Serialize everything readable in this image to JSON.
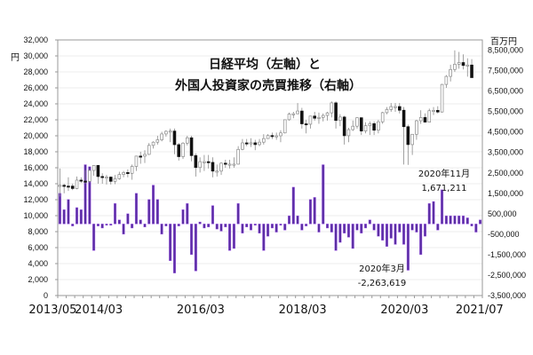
{
  "chart_data": {
    "type": "candlestick+bar",
    "title_lines": [
      "日経平均（左軸）と",
      "外国人投資家の売買推移（右軸）"
    ],
    "left_axis": {
      "unit": "円",
      "ylim": [
        0,
        32000
      ],
      "ticks": [
        "0",
        "2,000",
        "4,000",
        "6,000",
        "8,000",
        "10,000",
        "12,000",
        "14,000",
        "16,000",
        "18,000",
        "20,000",
        "22,000",
        "24,000",
        "26,000",
        "28,000",
        "30,000",
        "32,000"
      ]
    },
    "right_axis": {
      "unit": "百万円",
      "ylim": [
        -3500000,
        9000000
      ],
      "ticks": [
        "-3,500,000",
        "-2,500,000",
        "-1,500,000",
        "-500,000",
        "500,000",
        "1,500,000",
        "2,500,000",
        "3,500,000",
        "4,500,000",
        "5,500,000",
        "6,500,000",
        "7,500,000",
        "8,500,000"
      ]
    },
    "x_tick_labels": [
      {
        "label": "2013/05",
        "index": 0
      },
      {
        "label": "2014/03",
        "index": 10
      },
      {
        "label": "2016/03",
        "index": 34
      },
      {
        "label": "2018/03",
        "index": 58
      },
      {
        "label": "2020/03",
        "index": 82
      },
      {
        "label": "2021/07",
        "index": 98
      }
    ],
    "grid": true,
    "annotations": [
      {
        "label": "2020年11月",
        "value": "1,671,211",
        "index": 90
      },
      {
        "label": "2020年3月",
        "value": "-2,263,619",
        "index": 82
      }
    ],
    "series": [
      {
        "name": "日経平均",
        "kind": "candlestick",
        "axis": "left",
        "ohlc": [
          [
            13700,
            15900,
            12400,
            13800
          ],
          [
            13800,
            14000,
            12800,
            13700
          ],
          [
            13700,
            14800,
            13100,
            13670
          ],
          [
            13700,
            14000,
            13200,
            13400
          ],
          [
            13400,
            14900,
            13300,
            14450
          ],
          [
            14450,
            14800,
            14100,
            14330
          ],
          [
            14330,
            15700,
            14000,
            14300
          ],
          [
            14300,
            15800,
            14100,
            15660
          ],
          [
            15660,
            16320,
            15000,
            16290
          ],
          [
            16290,
            16300,
            14000,
            14900
          ],
          [
            14900,
            15300,
            14000,
            14830
          ],
          [
            14830,
            15100,
            13900,
            14830
          ],
          [
            14830,
            14900,
            13900,
            14300
          ],
          [
            14300,
            15100,
            13950,
            14630
          ],
          [
            14630,
            15500,
            14500,
            15160
          ],
          [
            15160,
            15600,
            14800,
            15400
          ],
          [
            15400,
            15800,
            14800,
            15300
          ],
          [
            15300,
            16400,
            14500,
            16170
          ],
          [
            16170,
            17500,
            15600,
            17460
          ],
          [
            17460,
            18000,
            16500,
            17450
          ],
          [
            17450,
            18200,
            16600,
            17670
          ],
          [
            17670,
            19100,
            17600,
            18800
          ],
          [
            18800,
            19300,
            18400,
            19200
          ],
          [
            19200,
            20000,
            18900,
            19500
          ],
          [
            19500,
            20500,
            19300,
            20230
          ],
          [
            20230,
            20700,
            19900,
            20560
          ],
          [
            20560,
            20900,
            19200,
            20590
          ],
          [
            20590,
            20900,
            17700,
            18890
          ],
          [
            18890,
            19100,
            16900,
            17390
          ],
          [
            17390,
            19200,
            17100,
            19080
          ],
          [
            19080,
            20000,
            18800,
            19750
          ],
          [
            19750,
            20000,
            16800,
            17520
          ],
          [
            17520,
            17800,
            14900,
            16030
          ],
          [
            16030,
            17300,
            15400,
            16760
          ],
          [
            16760,
            17600,
            15600,
            16760
          ],
          [
            16760,
            17600,
            15900,
            16670
          ],
          [
            16670,
            17300,
            14800,
            15580
          ],
          [
            15580,
            16400,
            14900,
            15580
          ],
          [
            15580,
            16700,
            15100,
            16570
          ],
          [
            16570,
            17000,
            16000,
            16450
          ],
          [
            16450,
            17000,
            15900,
            16450
          ],
          [
            16450,
            17300,
            16000,
            16450
          ],
          [
            16450,
            18700,
            16400,
            18300
          ],
          [
            18300,
            19600,
            18200,
            19110
          ],
          [
            19110,
            19600,
            18700,
            19040
          ],
          [
            19040,
            19700,
            18600,
            19120
          ],
          [
            19120,
            19500,
            18200,
            18900
          ],
          [
            18900,
            19600,
            18700,
            19200
          ],
          [
            19200,
            20200,
            18900,
            19650
          ],
          [
            19650,
            20200,
            19800,
            20030
          ],
          [
            20030,
            20400,
            19600,
            19920
          ],
          [
            19920,
            20400,
            19500,
            20000
          ],
          [
            20000,
            20700,
            19200,
            20360
          ],
          [
            20360,
            22000,
            20300,
            22010
          ],
          [
            22010,
            22900,
            21900,
            22720
          ],
          [
            22720,
            23000,
            22200,
            22760
          ],
          [
            22760,
            24100,
            22700,
            23100
          ],
          [
            23100,
            23500,
            20900,
            21500
          ],
          [
            21500,
            22000,
            20300,
            21450
          ],
          [
            21450,
            22400,
            20900,
            22470
          ],
          [
            22470,
            23000,
            21900,
            22200
          ],
          [
            22200,
            22900,
            21500,
            22300
          ],
          [
            22300,
            22800,
            21800,
            22550
          ],
          [
            22550,
            23000,
            21900,
            22870
          ],
          [
            22870,
            24300,
            22300,
            24120
          ],
          [
            24120,
            24300,
            20900,
            21920
          ],
          [
            21920,
            22700,
            21200,
            22350
          ],
          [
            22350,
            22500,
            18900,
            20010
          ],
          [
            20010,
            21000,
            19200,
            20770
          ],
          [
            20770,
            21900,
            20600,
            21200
          ],
          [
            21200,
            22300,
            20900,
            22260
          ],
          [
            22260,
            22300,
            20100,
            20600
          ],
          [
            20600,
            21700,
            20300,
            21270
          ],
          [
            21270,
            21800,
            20100,
            21520
          ],
          [
            21520,
            21800,
            20100,
            20700
          ],
          [
            20700,
            22000,
            20300,
            21750
          ],
          [
            21750,
            23000,
            21500,
            22900
          ],
          [
            22900,
            23600,
            22700,
            23290
          ],
          [
            23290,
            24100,
            23000,
            23660
          ],
          [
            23660,
            24100,
            23000,
            23660
          ],
          [
            23660,
            24100,
            22800,
            23200
          ],
          [
            23200,
            23600,
            16400,
            21140
          ],
          [
            21140,
            21400,
            16358,
            18900
          ],
          [
            18900,
            20200,
            17600,
            20190
          ],
          [
            20190,
            22000,
            19500,
            21880
          ],
          [
            21880,
            23200,
            21500,
            22290
          ],
          [
            22290,
            22800,
            21700,
            21710
          ],
          [
            21710,
            23400,
            21800,
            23140
          ],
          [
            23140,
            23600,
            22600,
            23180
          ],
          [
            23180,
            23700,
            22800,
            22980
          ],
          [
            22980,
            26500,
            22900,
            26430
          ],
          [
            26430,
            27600,
            26000,
            27440
          ],
          [
            27440,
            28900,
            26800,
            28300
          ],
          [
            28300,
            30700,
            28000,
            28960
          ],
          [
            28960,
            30500,
            28400,
            29170
          ],
          [
            29170,
            30200,
            28300,
            28810
          ],
          [
            28810,
            29700,
            27400,
            28860
          ],
          [
            28860,
            29600,
            27800,
            27280
          ]
        ]
      },
      {
        "name": "外国人投資家の売買",
        "kind": "bar",
        "axis": "right",
        "color": "#5b2fa3",
        "values": [
          1500000,
          700000,
          1200000,
          -100000,
          800000,
          700000,
          2900000,
          2800000,
          -1300000,
          -100000,
          -200000,
          -50000,
          -50000,
          1000000,
          200000,
          -500000,
          500000,
          -200000,
          1500000,
          200000,
          -150000,
          1200000,
          1900000,
          1200000,
          -500000,
          -100000,
          -1800000,
          -2400000,
          -100000,
          700000,
          1000000,
          -1500000,
          -2300000,
          100000,
          -200000,
          -150000,
          900000,
          -250000,
          -350000,
          -150000,
          -1300000,
          -1200000,
          1000000,
          -450000,
          -150000,
          -300000,
          -50000,
          -450000,
          -1300000,
          -600000,
          -200000,
          -400000,
          -50000,
          -300000,
          400000,
          1800000,
          400000,
          -300000,
          -100000,
          1200000,
          1300000,
          -400000,
          2900000,
          -200000,
          -400000,
          -1300000,
          -900000,
          -450000,
          -650000,
          -1200000,
          -300000,
          -450000,
          -200000,
          200000,
          -300000,
          -600000,
          -800000,
          -1100000,
          -700000,
          -1000000,
          -400000,
          -1000000,
          -2263619,
          -300000,
          -400000,
          -1500000,
          -600000,
          1000000,
          1100000,
          -300000,
          1671211,
          400000,
          400000,
          400000,
          400000,
          400000,
          300000,
          -100000,
          -400000,
          200000
        ]
      }
    ]
  }
}
